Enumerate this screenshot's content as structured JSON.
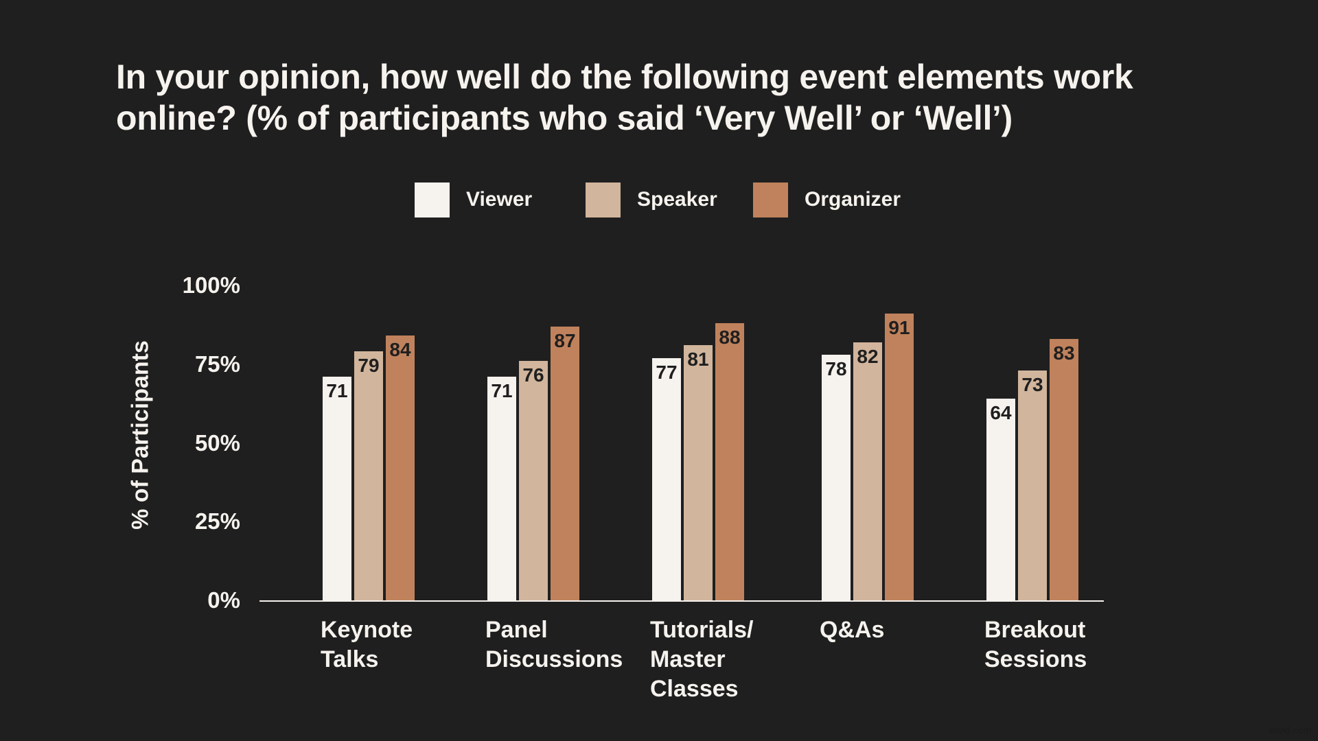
{
  "title": "In your opinion, how well do the following event elements work online? (% of participants who said ‘Very Well’ or ‘Well’)",
  "legend": [
    {
      "label": "Viewer",
      "color": "#f6f2ee"
    },
    {
      "label": "Speaker",
      "color": "#d1b59c"
    },
    {
      "label": "Organizer",
      "color": "#c0825c"
    }
  ],
  "y_axis": {
    "label": "% of Participants",
    "ticks": [
      "0%",
      "25%",
      "50%",
      "75%",
      "100%"
    ]
  },
  "categories": [
    {
      "label": "Keynote\nTalks"
    },
    {
      "label": "Panel\nDiscussions"
    },
    {
      "label": "Tutorials/\nMaster\nClasses"
    },
    {
      "label": "Q&As"
    },
    {
      "label": "Breakout\nSessions"
    }
  ],
  "watermark": "wtvid.com",
  "chart_data": {
    "type": "bar",
    "title": "In your opinion, how well do the following event elements work online? (% of participants who said ‘Very Well’ or ‘Well’)",
    "categories": [
      "Keynote Talks",
      "Panel Discussions",
      "Tutorials/ Master Classes",
      "Q&As",
      "Breakout Sessions"
    ],
    "series": [
      {
        "name": "Viewer",
        "color": "#f6f2ee",
        "values": [
          71,
          71,
          77,
          78,
          64
        ]
      },
      {
        "name": "Speaker",
        "color": "#d1b59c",
        "values": [
          79,
          76,
          81,
          82,
          73
        ]
      },
      {
        "name": "Organizer",
        "color": "#c0825c",
        "values": [
          84,
          87,
          88,
          91,
          83
        ]
      }
    ],
    "xlabel": "",
    "ylabel": "% of Participants",
    "ylim": [
      0,
      100
    ],
    "yticks": [
      "0%",
      "25%",
      "50%",
      "75%",
      "100%"
    ],
    "grid": false,
    "legend_position": "top"
  }
}
